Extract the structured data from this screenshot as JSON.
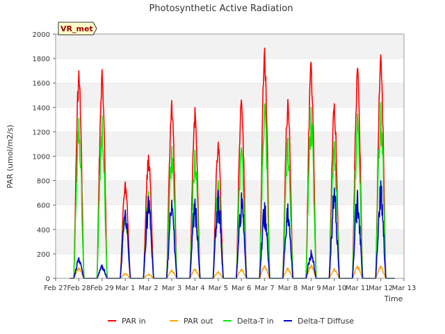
{
  "chart_data": {
    "type": "line",
    "title": "Photosynthetic Active Radiation",
    "xlabel": "Time",
    "ylabel": "PAR (umol/m2/s)",
    "ylim": [
      0,
      2000
    ],
    "yticks": [
      0,
      200,
      400,
      600,
      800,
      1000,
      1200,
      1400,
      1600,
      1800,
      2000
    ],
    "xlim": [
      0,
      15
    ],
    "xticks": [
      {
        "pos": 0,
        "label": "Feb 27"
      },
      {
        "pos": 1,
        "label": "Feb 28"
      },
      {
        "pos": 2,
        "label": "Feb 29"
      },
      {
        "pos": 3,
        "label": "Mar 1"
      },
      {
        "pos": 4,
        "label": "Mar 2"
      },
      {
        "pos": 5,
        "label": "Mar 3"
      },
      {
        "pos": 6,
        "label": "Mar 4"
      },
      {
        "pos": 7,
        "label": "Mar 5"
      },
      {
        "pos": 8,
        "label": "Mar 6"
      },
      {
        "pos": 9,
        "label": "Mar 7"
      },
      {
        "pos": 10,
        "label": "Mar 8"
      },
      {
        "pos": 11,
        "label": "Mar 9"
      },
      {
        "pos": 12,
        "label": "Mar 10"
      },
      {
        "pos": 13,
        "label": "Mar 11"
      },
      {
        "pos": 14,
        "label": "Mar 12"
      },
      {
        "pos": 15,
        "label": "Mar 13"
      }
    ],
    "grid_bands": true,
    "station_label": "VR_met",
    "legend_position": "bottom-center",
    "series": [
      {
        "name": "PAR in",
        "color": "#ff0000",
        "peaks": [
          1700,
          1710,
          790,
          1010,
          1455,
          1400,
          1115,
          1460,
          1885,
          1465,
          1770,
          1430,
          1720,
          1830
        ]
      },
      {
        "name": "PAR out",
        "color": "#ffa500",
        "peaks": [
          90,
          95,
          40,
          35,
          70,
          75,
          55,
          75,
          105,
          85,
          110,
          80,
          100,
          100
        ]
      },
      {
        "name": "Delta-T in",
        "color": "#00ee00",
        "peaks": [
          1310,
          1330,
          560,
          710,
          1080,
          1050,
          800,
          1070,
          1430,
          1150,
          1400,
          1120,
          1350,
          1440
        ]
      },
      {
        "name": "Delta-T Diffuse",
        "color": "#0000cc",
        "peaks": [
          170,
          110,
          560,
          670,
          640,
          650,
          720,
          700,
          620,
          610,
          230,
          740,
          720,
          800
        ]
      }
    ]
  }
}
